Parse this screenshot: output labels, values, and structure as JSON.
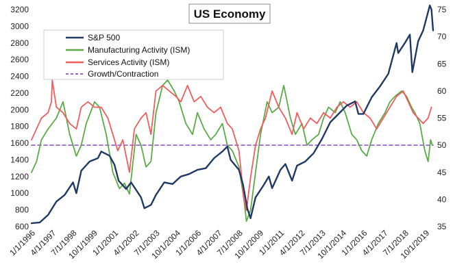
{
  "chart_data": {
    "type": "line",
    "title": "US Economy",
    "xlabel": "",
    "ylabel_left": "",
    "ylabel_right": "",
    "left_axis": {
      "min": 600,
      "max": 3200,
      "ticks": [
        600,
        800,
        1000,
        1200,
        1400,
        1600,
        1800,
        2000,
        2200,
        2400,
        2600,
        2800,
        3000,
        3200
      ]
    },
    "right_axis": {
      "min": 35,
      "max": 75,
      "ticks": [
        35,
        40,
        45,
        50,
        55,
        60,
        65,
        70,
        75
      ]
    },
    "x_range": [
      1996.0,
      2020.2
    ],
    "x_tick_labels": [
      "1/1/1996",
      "4/1/1997",
      "7/1/1998",
      "10/1/1999",
      "1/1/2001",
      "4/1/2002",
      "7/1/2003",
      "10/1/2004",
      "1/1/2006",
      "4/1/2007",
      "7/1/2008",
      "10/1/2009",
      "1/1/2011",
      "4/1/2012",
      "7/1/2013",
      "10/1/2014",
      "1/1/2016",
      "4/1/2017",
      "7/1/2018",
      "10/1/2019"
    ],
    "x_tick_values": [
      1996.0,
      1997.25,
      1998.5,
      1999.75,
      2001.0,
      2002.25,
      2003.5,
      2004.75,
      2006.0,
      2007.25,
      2008.5,
      2009.75,
      2011.0,
      2012.25,
      2013.5,
      2014.75,
      2016.0,
      2017.25,
      2018.5,
      2019.75
    ],
    "gridlines": "none",
    "legend_position": "top-left",
    "series": [
      {
        "name": "S&P 500",
        "axis": "left",
        "color": "#1f3864",
        "style": "solid",
        "x": [
          1996.0,
          1996.5,
          1997.0,
          1997.5,
          1998.0,
          1998.5,
          1998.7,
          1999.0,
          1999.5,
          2000.0,
          2000.2,
          2000.7,
          2001.0,
          2001.25,
          2001.7,
          2002.0,
          2002.6,
          2002.8,
          2003.2,
          2003.5,
          2004.0,
          2004.5,
          2005.0,
          2005.5,
          2006.0,
          2006.5,
          2007.0,
          2007.5,
          2007.8,
          2008.0,
          2008.5,
          2008.75,
          2009.0,
          2009.2,
          2009.5,
          2010.0,
          2010.3,
          2010.5,
          2011.0,
          2011.3,
          2011.7,
          2012.0,
          2012.5,
          2013.0,
          2013.5,
          2014.0,
          2014.5,
          2015.0,
          2015.5,
          2015.7,
          2016.0,
          2016.5,
          2017.0,
          2017.5,
          2018.0,
          2018.1,
          2018.5,
          2018.8,
          2018.95,
          2019.3,
          2019.6,
          2020.0,
          2020.1,
          2020.2
        ],
        "values": [
          640,
          650,
          740,
          900,
          980,
          1130,
          1000,
          1270,
          1380,
          1420,
          1500,
          1450,
          1340,
          1150,
          1050,
          1130,
          950,
          820,
          860,
          980,
          1130,
          1110,
          1200,
          1230,
          1280,
          1300,
          1420,
          1500,
          1560,
          1400,
          1280,
          1100,
          820,
          700,
          950,
          1100,
          1200,
          1060,
          1280,
          1350,
          1150,
          1330,
          1380,
          1480,
          1650,
          1850,
          1950,
          2050,
          2100,
          1950,
          1950,
          2150,
          2280,
          2430,
          2800,
          2680,
          2800,
          2900,
          2450,
          2820,
          2950,
          3250,
          3200,
          2950
        ]
      },
      {
        "name": "Manufacturing Activity (ISM)",
        "axis": "right",
        "color": "#5aaa46",
        "style": "solid",
        "x": [
          1996.0,
          1996.3,
          1996.6,
          1997.0,
          1997.5,
          1997.9,
          1998.3,
          1998.7,
          1999.0,
          1999.3,
          1999.8,
          2000.1,
          2000.5,
          2000.9,
          2001.3,
          2001.6,
          2001.9,
          2002.3,
          2002.6,
          2002.9,
          2003.2,
          2003.5,
          2003.9,
          2004.2,
          2004.6,
          2004.9,
          2005.3,
          2005.7,
          2006.0,
          2006.4,
          2006.8,
          2007.1,
          2007.5,
          2007.8,
          2008.1,
          2008.5,
          2008.8,
          2008.95,
          2009.2,
          2009.5,
          2009.8,
          2010.2,
          2010.5,
          2010.9,
          2011.2,
          2011.6,
          2011.9,
          2012.3,
          2012.6,
          2012.9,
          2013.3,
          2013.6,
          2013.9,
          2014.3,
          2014.6,
          2014.9,
          2015.3,
          2015.6,
          2015.9,
          2016.2,
          2016.5,
          2016.9,
          2017.3,
          2017.6,
          2017.9,
          2018.3,
          2018.6,
          2018.9,
          2019.1,
          2019.4,
          2019.7,
          2019.9,
          2020.05,
          2020.15
        ],
        "values": [
          45,
          47,
          51,
          53,
          55,
          58,
          52,
          48,
          50,
          54,
          58,
          57,
          52,
          45,
          42,
          43,
          41,
          52,
          50,
          46,
          47,
          56,
          61,
          62,
          60,
          58,
          54,
          52,
          56,
          53,
          51,
          52,
          54,
          50,
          49,
          46,
          40,
          36,
          38,
          45,
          52,
          58,
          56,
          57,
          61,
          55,
          52,
          54,
          50,
          51,
          52,
          55,
          57,
          56,
          58,
          56,
          52,
          51,
          49,
          48,
          51,
          54,
          56,
          58,
          59,
          60,
          59,
          57,
          56,
          54,
          49,
          47,
          51,
          50
        ]
      },
      {
        "name": "Services Activity (ISM)",
        "axis": "right",
        "color": "#f25c5c",
        "style": "solid",
        "x": [
          1996.0,
          1996.3,
          1996.6,
          1997.0,
          1997.2,
          1997.25,
          1997.5,
          1997.9,
          1998.3,
          1998.7,
          1999.0,
          1999.4,
          1999.8,
          2000.2,
          2000.6,
          2000.9,
          2001.2,
          2001.5,
          2001.9,
          2002.2,
          2002.6,
          2002.9,
          2003.2,
          2003.5,
          2003.9,
          2004.3,
          2004.7,
          2005.0,
          2005.4,
          2005.8,
          2006.2,
          2006.6,
          2007.0,
          2007.4,
          2007.8,
          2008.1,
          2008.5,
          2008.8,
          2008.95,
          2009.2,
          2009.5,
          2009.8,
          2010.1,
          2010.5,
          2010.9,
          2011.3,
          2011.7,
          2012.0,
          2012.4,
          2012.8,
          2013.2,
          2013.6,
          2014.0,
          2014.4,
          2014.8,
          2015.2,
          2015.6,
          2016.0,
          2016.4,
          2016.8,
          2017.2,
          2017.6,
          2018.0,
          2018.4,
          2018.7,
          2019.0,
          2019.3,
          2019.6,
          2019.9,
          2020.1
        ],
        "values": [
          51,
          53,
          55,
          56,
          58,
          62,
          57,
          56,
          54,
          53,
          57,
          58,
          57,
          57,
          55,
          52,
          49,
          51,
          45,
          53,
          55,
          56,
          52,
          60,
          61,
          60,
          59,
          58,
          61,
          58,
          59,
          57,
          56,
          57,
          54,
          53,
          49,
          40,
          38,
          44,
          50,
          53,
          55,
          60,
          57,
          55,
          52,
          56,
          53,
          55,
          54,
          56,
          55,
          57,
          58,
          57,
          58,
          56,
          55,
          53,
          55,
          57,
          59,
          60,
          58,
          56,
          55,
          54,
          55,
          57
        ]
      },
      {
        "name": "Growth/Contraction",
        "axis": "right",
        "color": "#9966cc",
        "style": "dashed",
        "x": [
          1996.0,
          2020.2
        ],
        "values": [
          50,
          50
        ]
      }
    ]
  }
}
